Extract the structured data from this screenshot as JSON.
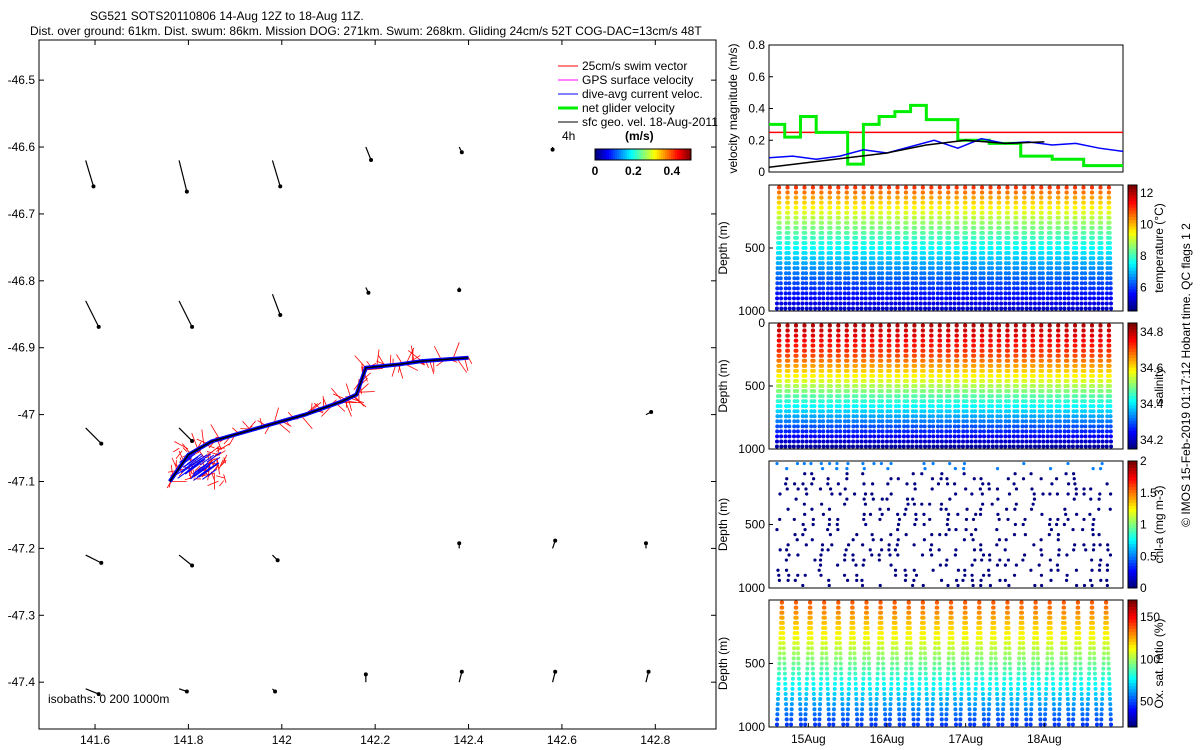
{
  "header": {
    "title": "SG521 SOTS20110806 14-Aug 12Z to 18-Aug 11Z.",
    "subtitle": "Dist. over ground: 61km. Dist. swum: 86km. Mission DOG: 271km. Swum: 268km. Gliding 24cm/s 52T COG-DAC=13cm/s 48T"
  },
  "side_note": "© IMOS 15-Feb-2019 01:17:12 Hobart time. QC flags 1  2",
  "colors": {
    "swim": "#ff0000",
    "gps": "#ff00ff",
    "dac": "#0000ff",
    "net": "#00ee00",
    "sfc": "#000000"
  },
  "chart_data": [
    {
      "type": "scatter",
      "name": "map",
      "x_ticks": [
        "141.6",
        "141.8",
        "142",
        "142.2",
        "142.4",
        "142.6",
        "142.8"
      ],
      "y_ticks": [
        "-46.5",
        "-46.6",
        "-46.7",
        "-46.8",
        "-46.9",
        "-47",
        "-47.1",
        "-47.2",
        "-47.3",
        "-47.4"
      ],
      "xlim": [
        141.48,
        142.93
      ],
      "ylim": [
        -47.47,
        -46.44
      ],
      "legend": [
        "25cm/s swim vector",
        "GPS surface velocity",
        "dive-avg current veloc.",
        "net glider velocity",
        "sfc geo. vel. 18-Aug-2011"
      ],
      "colorbar": {
        "label": "(m/s)",
        "ticks": [
          "0",
          "0.2",
          "0.4"
        ],
        "range": [
          0,
          0.5
        ],
        "note": "4h"
      },
      "isobaths_label": "isobaths: 0   200  1000m",
      "track": [
        [
          141.76,
          -47.1
        ],
        [
          141.8,
          -47.06
        ],
        [
          141.85,
          -47.04
        ],
        [
          141.95,
          -47.02
        ],
        [
          142.05,
          -47.0
        ],
        [
          142.13,
          -46.98
        ],
        [
          142.16,
          -46.97
        ],
        [
          142.18,
          -46.93
        ],
        [
          142.25,
          -46.925
        ],
        [
          142.3,
          -46.92
        ],
        [
          142.4,
          -46.915
        ]
      ],
      "vectors": [
        {
          "lon": 141.58,
          "lat": -46.62,
          "u": 0.03,
          "v": -0.1
        },
        {
          "lon": 141.78,
          "lat": -46.62,
          "u": 0.03,
          "v": -0.12
        },
        {
          "lon": 141.98,
          "lat": -46.62,
          "u": 0.03,
          "v": -0.1
        },
        {
          "lon": 142.18,
          "lat": -46.6,
          "u": 0.02,
          "v": -0.05
        },
        {
          "lon": 142.38,
          "lat": -46.6,
          "u": 0.01,
          "v": -0.02
        },
        {
          "lon": 142.58,
          "lat": -46.6,
          "u": 0.0,
          "v": -0.01
        },
        {
          "lon": 141.58,
          "lat": -46.83,
          "u": 0.05,
          "v": -0.1
        },
        {
          "lon": 141.78,
          "lat": -46.83,
          "u": 0.05,
          "v": -0.1
        },
        {
          "lon": 141.98,
          "lat": -46.82,
          "u": 0.03,
          "v": -0.08
        },
        {
          "lon": 142.18,
          "lat": -46.81,
          "u": 0.01,
          "v": -0.02
        },
        {
          "lon": 142.38,
          "lat": -46.81,
          "u": 0.0,
          "v": -0.01
        },
        {
          "lon": 141.58,
          "lat": -47.02,
          "u": 0.06,
          "v": -0.06
        },
        {
          "lon": 141.78,
          "lat": -47.02,
          "u": 0.05,
          "v": -0.05
        },
        {
          "lon": 142.78,
          "lat": -47.0,
          "u": 0.02,
          "v": 0.01
        },
        {
          "lon": 141.58,
          "lat": -47.21,
          "u": 0.06,
          "v": -0.03
        },
        {
          "lon": 141.78,
          "lat": -47.21,
          "u": 0.05,
          "v": -0.04
        },
        {
          "lon": 141.98,
          "lat": -47.21,
          "u": 0.02,
          "v": -0.02
        },
        {
          "lon": 142.38,
          "lat": -47.2,
          "u": 0.0,
          "v": 0.02
        },
        {
          "lon": 142.58,
          "lat": -47.2,
          "u": 0.01,
          "v": 0.03
        },
        {
          "lon": 142.78,
          "lat": -47.2,
          "u": 0.0,
          "v": 0.02
        },
        {
          "lon": 141.58,
          "lat": -47.41,
          "u": 0.05,
          "v": -0.02
        },
        {
          "lon": 141.78,
          "lat": -47.41,
          "u": 0.03,
          "v": -0.01
        },
        {
          "lon": 141.98,
          "lat": -47.41,
          "u": 0.01,
          "v": -0.01
        },
        {
          "lon": 142.18,
          "lat": -47.4,
          "u": 0.0,
          "v": 0.03
        },
        {
          "lon": 142.38,
          "lat": -47.4,
          "u": 0.01,
          "v": 0.04
        },
        {
          "lon": 142.58,
          "lat": -47.4,
          "u": 0.01,
          "v": 0.04
        },
        {
          "lon": 142.78,
          "lat": -47.4,
          "u": 0.01,
          "v": 0.04
        }
      ]
    },
    {
      "type": "line",
      "name": "velocity",
      "ylabel": "velocity magnitude (m/s)",
      "y_ticks": [
        "0",
        "0.2",
        "0.4",
        "0.6",
        "0.8"
      ],
      "ylim": [
        0,
        0.8
      ],
      "xlim": [
        14.5,
        19.0
      ],
      "series": [
        {
          "color": "#ff0000",
          "x": [
            14.5,
            19.0
          ],
          "y": [
            0.25,
            0.25
          ]
        },
        {
          "color": "#00ee00",
          "x": [
            14.5,
            14.7,
            14.7,
            14.9,
            14.9,
            15.1,
            15.1,
            15.5,
            15.5,
            15.7,
            15.7,
            15.9,
            15.9,
            16.1,
            16.1,
            16.3,
            16.3,
            16.5,
            16.5,
            16.9,
            16.9,
            17.3,
            17.3,
            17.7,
            17.7,
            18.1,
            18.1,
            18.5,
            18.5,
            19.0
          ],
          "y": [
            0.3,
            0.3,
            0.22,
            0.22,
            0.35,
            0.35,
            0.25,
            0.25,
            0.05,
            0.05,
            0.3,
            0.3,
            0.35,
            0.35,
            0.38,
            0.38,
            0.42,
            0.42,
            0.33,
            0.33,
            0.2,
            0.2,
            0.18,
            0.18,
            0.1,
            0.1,
            0.08,
            0.08,
            0.04,
            0.04
          ]
        },
        {
          "color": "#0000ff",
          "x": [
            14.5,
            14.8,
            15.1,
            15.4,
            15.7,
            16.0,
            16.3,
            16.6,
            16.9,
            17.2,
            17.5,
            17.8,
            18.1,
            18.4,
            18.7,
            19.0
          ],
          "y": [
            0.09,
            0.1,
            0.08,
            0.1,
            0.14,
            0.12,
            0.16,
            0.2,
            0.15,
            0.21,
            0.18,
            0.19,
            0.17,
            0.18,
            0.15,
            0.13
          ]
        },
        {
          "color": "#000000",
          "x": [
            14.5,
            15.0,
            15.5,
            16.0,
            16.5,
            17.0,
            17.5,
            18.0
          ],
          "y": [
            0.03,
            0.06,
            0.09,
            0.12,
            0.17,
            0.2,
            0.18,
            0.19
          ]
        }
      ]
    },
    {
      "type": "scatter",
      "name": "temperature",
      "ylabel": "Depth (m)",
      "clabel": "temperature (°C)",
      "c_ticks": [
        "6",
        "8",
        "10",
        "12"
      ],
      "crange": [
        4.5,
        12.5
      ],
      "y_ticks": [
        "",
        "500",
        "1000"
      ],
      "ylim": [
        0,
        1000
      ],
      "variable": "temperature",
      "dives": 40
    },
    {
      "type": "scatter",
      "name": "salinity",
      "ylabel": "Depth (m)",
      "clabel": "salinity",
      "c_ticks": [
        "34.2",
        "34.4",
        "34.6",
        "34.8"
      ],
      "crange": [
        34.15,
        34.85
      ],
      "y_ticks": [
        "0",
        "500",
        "1000"
      ],
      "ylim": [
        0,
        1000
      ],
      "variable": "salinity",
      "dives": 40
    },
    {
      "type": "scatter",
      "name": "chla",
      "ylabel": "Depth (m)",
      "clabel": "chl-a (mg m-3)",
      "c_ticks": [
        "0",
        "0.5",
        "1",
        "1.5",
        "2"
      ],
      "crange": [
        0,
        2
      ],
      "y_ticks": [
        "",
        "500",
        "1000"
      ],
      "ylim": [
        0,
        1000
      ],
      "variable": "chla",
      "dives": 40
    },
    {
      "type": "scatter",
      "name": "oxygen",
      "ylabel": "Depth (m)",
      "clabel": "Ox. sat. ratio (%)",
      "c_ticks": [
        "50",
        "100",
        "150"
      ],
      "crange": [
        20,
        170
      ],
      "y_ticks": [
        "",
        "500",
        "1000"
      ],
      "ylim": [
        0,
        1000
      ],
      "variable": "oxygen",
      "dives": 24
    },
    {
      "type": "axis",
      "name": "time",
      "x_ticks": [
        "15Aug",
        "16Aug",
        "17Aug",
        "18Aug"
      ],
      "x_values": [
        15,
        16,
        17,
        18
      ]
    }
  ]
}
